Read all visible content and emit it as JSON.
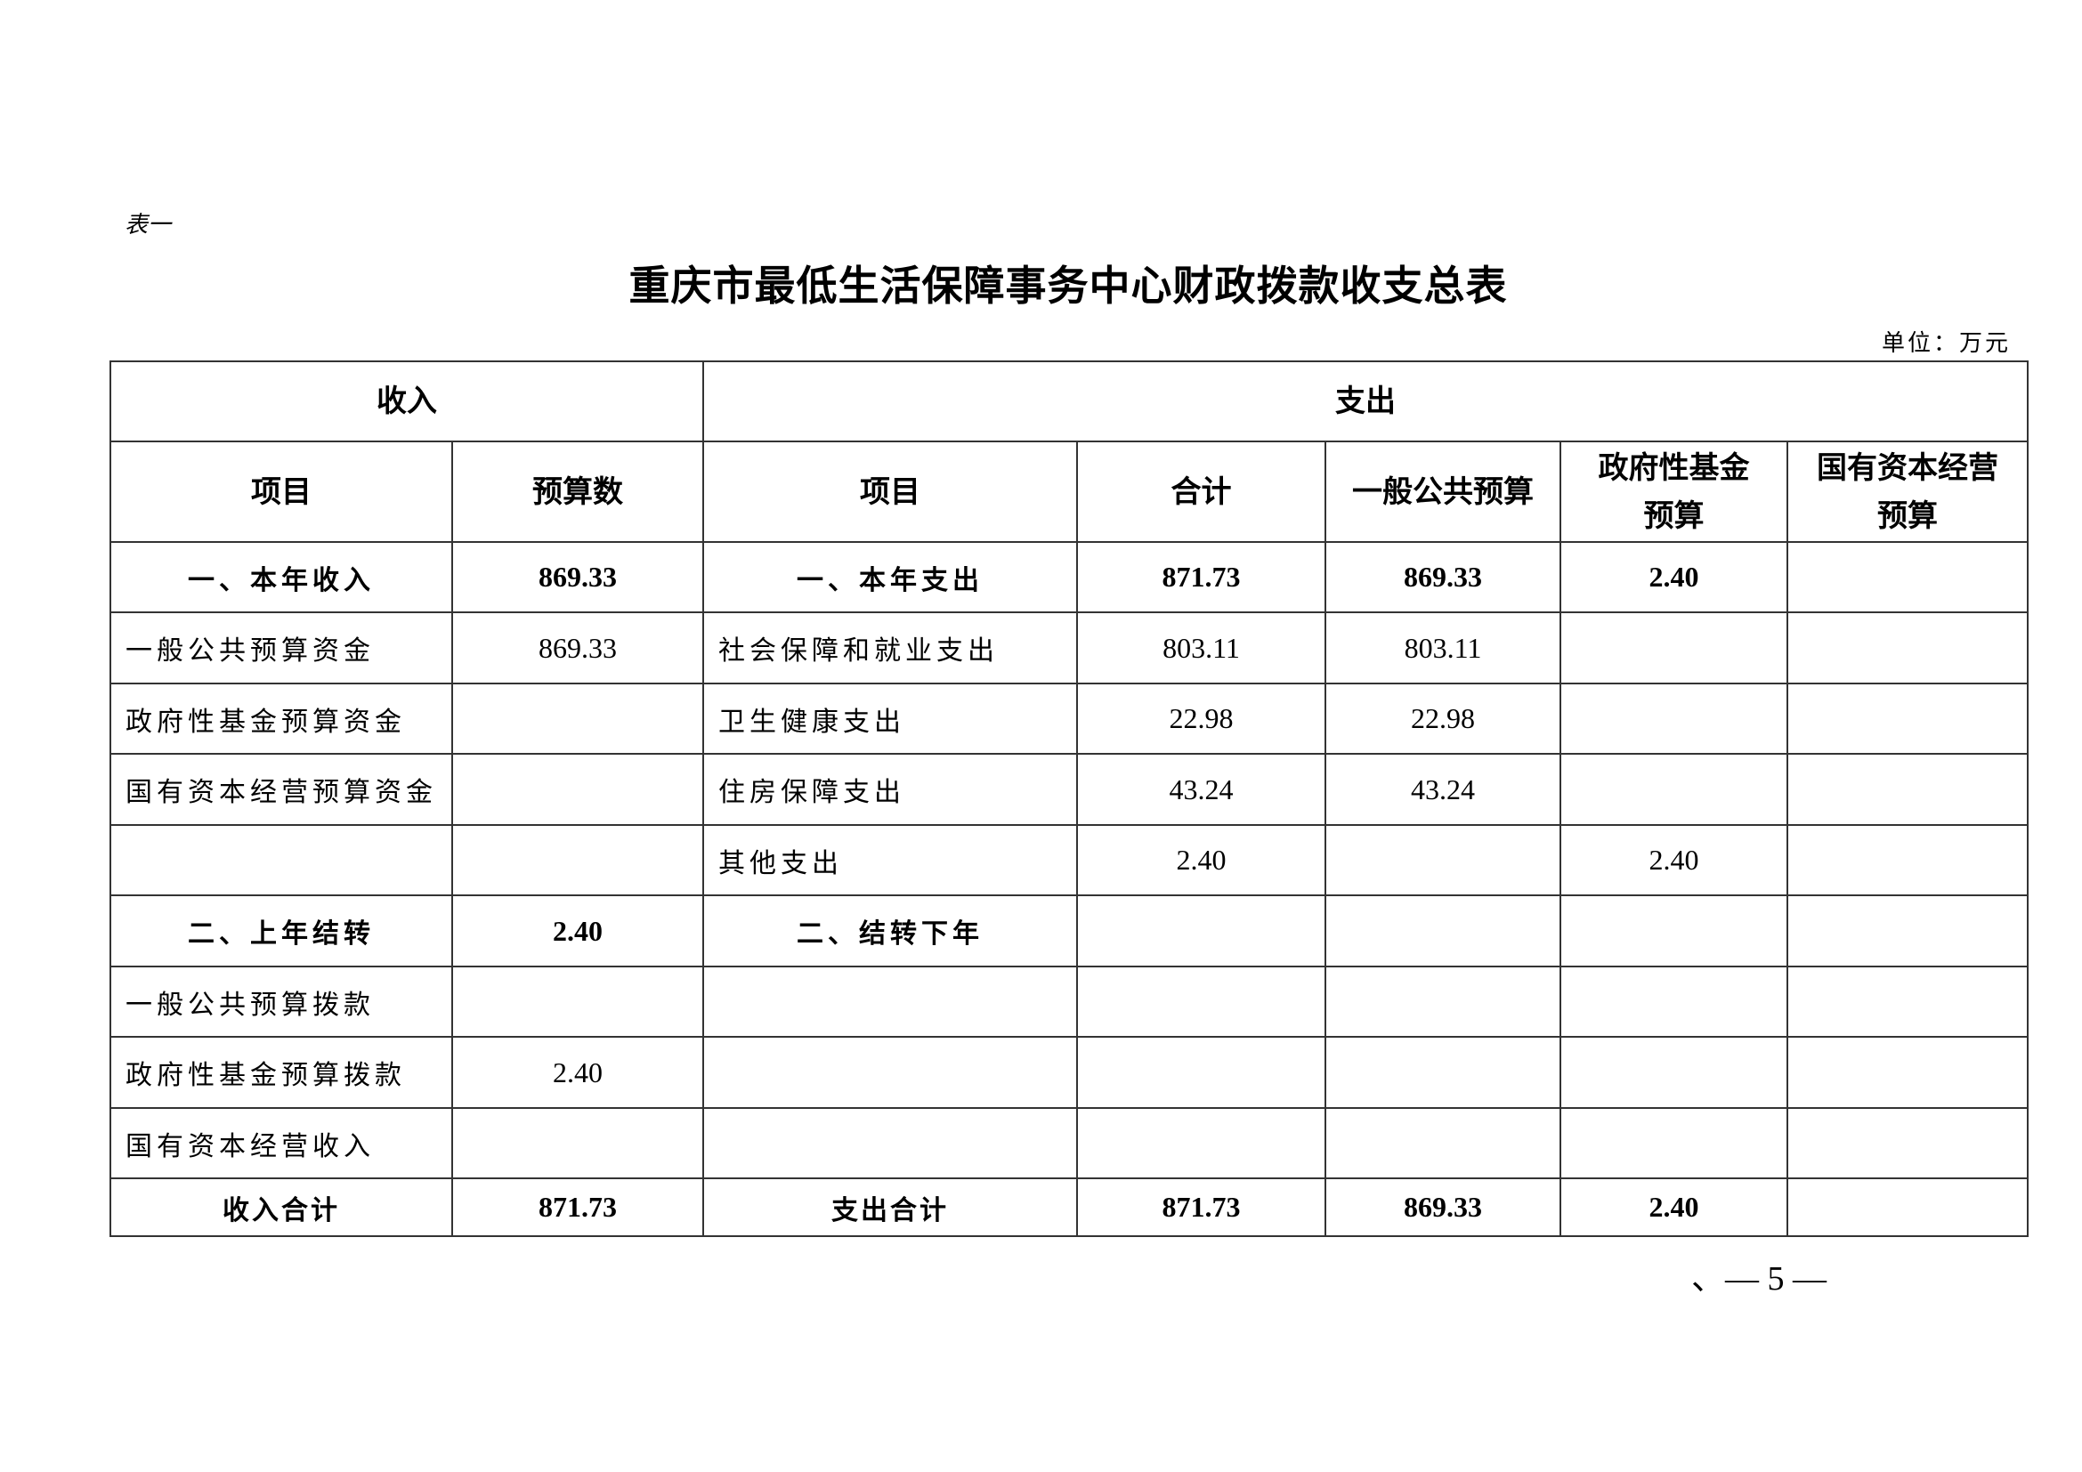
{
  "doc": {
    "table_label": "表一",
    "title": "重庆市最低生活保障事务中心财政拨款收支总表",
    "unit": "单位：万元",
    "page_number": "、— 5 —"
  },
  "table": {
    "group_headers": {
      "income": "收入",
      "expense": "支出"
    },
    "columns": [
      "项目",
      "预算数",
      "项目",
      "合计",
      "一般公共预算",
      "政府性基金预算",
      "国有资本经营预算"
    ],
    "col_lines": {
      "gov_fund": [
        "政府性基金",
        "预算"
      ],
      "state_capital": [
        "国有资本经营",
        "预算"
      ]
    },
    "rows": [
      [
        "一、本年收入",
        "869.33",
        "一、本年支出",
        "871.73",
        "869.33",
        "2.40",
        ""
      ],
      [
        "一般公共预算资金",
        "869.33",
        "社会保障和就业支出",
        "803.11",
        "803.11",
        "",
        ""
      ],
      [
        "政府性基金预算资金",
        "",
        "卫生健康支出",
        "22.98",
        "22.98",
        "",
        ""
      ],
      [
        "国有资本经营预算资金",
        "",
        "住房保障支出",
        "43.24",
        "43.24",
        "",
        ""
      ],
      [
        "",
        "",
        "其他支出",
        "2.40",
        "",
        "2.40",
        ""
      ],
      [
        "二、上年结转",
        "2.40",
        "二、结转下年",
        "",
        "",
        "",
        ""
      ],
      [
        "一般公共预算拨款",
        "",
        "",
        "",
        "",
        "",
        ""
      ],
      [
        "政府性基金预算拨款",
        "2.40",
        "",
        "",
        "",
        "",
        ""
      ],
      [
        "国有资本经营收入",
        "",
        "",
        "",
        "",
        "",
        ""
      ],
      [
        "收入合计",
        "871.73",
        "支出合计",
        "871.73",
        "869.33",
        "2.40",
        ""
      ]
    ]
  }
}
